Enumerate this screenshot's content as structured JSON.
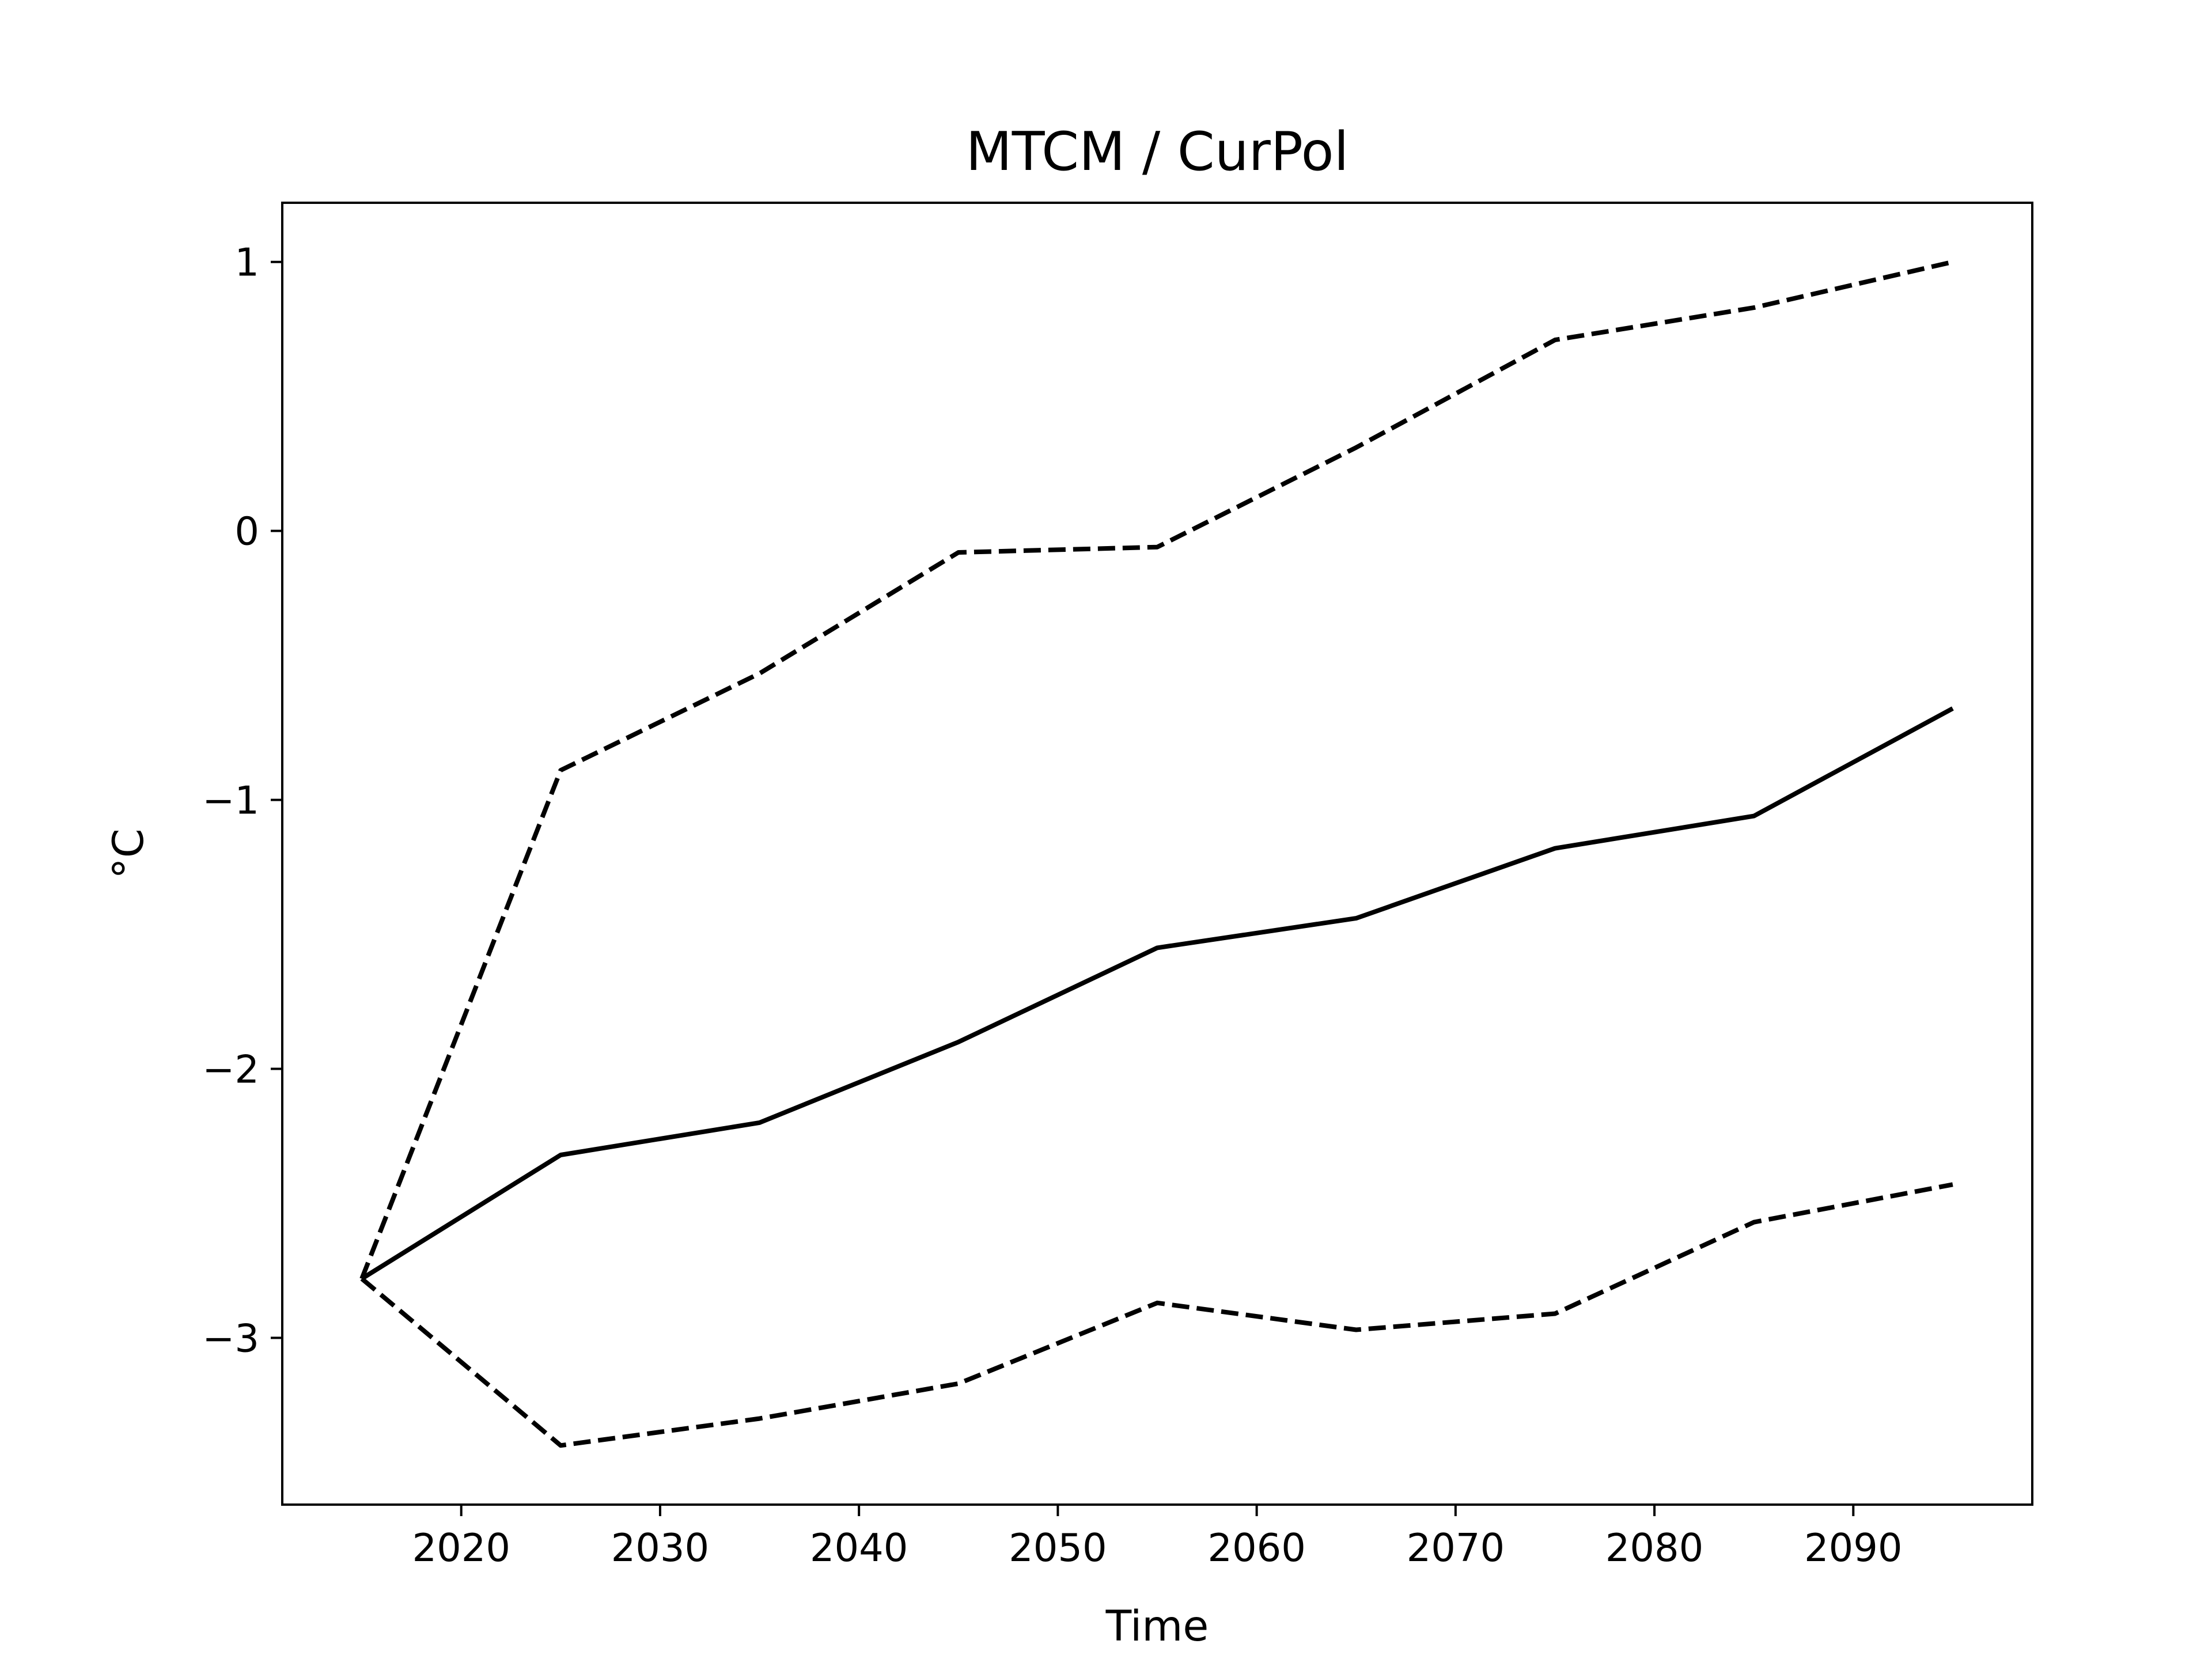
{
  "chart_data": {
    "type": "line",
    "title": "MTCM / CurPol",
    "xlabel": "Time",
    "ylabel": "°C",
    "x": [
      2015,
      2025,
      2035,
      2045,
      2055,
      2065,
      2075,
      2085,
      2095
    ],
    "series": [
      {
        "style": "solid",
        "values": [
          -2.78,
          -2.32,
          -2.2,
          -1.9,
          -1.55,
          -1.44,
          -1.18,
          -1.06,
          -0.66
        ]
      },
      {
        "style": "dashed",
        "values": [
          -2.78,
          -0.89,
          -0.53,
          -0.08,
          -0.06,
          0.31,
          0.71,
          0.83,
          1.0
        ]
      },
      {
        "style": "dashed",
        "values": [
          -2.78,
          -3.4,
          -3.3,
          -3.17,
          -2.87,
          -2.97,
          -2.91,
          -2.57,
          -2.43
        ]
      }
    ],
    "xticks": [
      2020,
      2030,
      2040,
      2050,
      2060,
      2070,
      2080,
      2090
    ],
    "xtick_labels": [
      "2020",
      "2030",
      "2040",
      "2050",
      "2060",
      "2070",
      "2080",
      "2090"
    ],
    "yticks": [
      1,
      0,
      -1,
      -2,
      -3
    ],
    "ytick_labels": [
      "1",
      "0",
      "−1",
      "−2",
      "−3"
    ],
    "xlim": [
      2011,
      2099
    ],
    "ylim": [
      -3.62,
      1.22
    ],
    "grid": false,
    "line_color": "#000000"
  }
}
